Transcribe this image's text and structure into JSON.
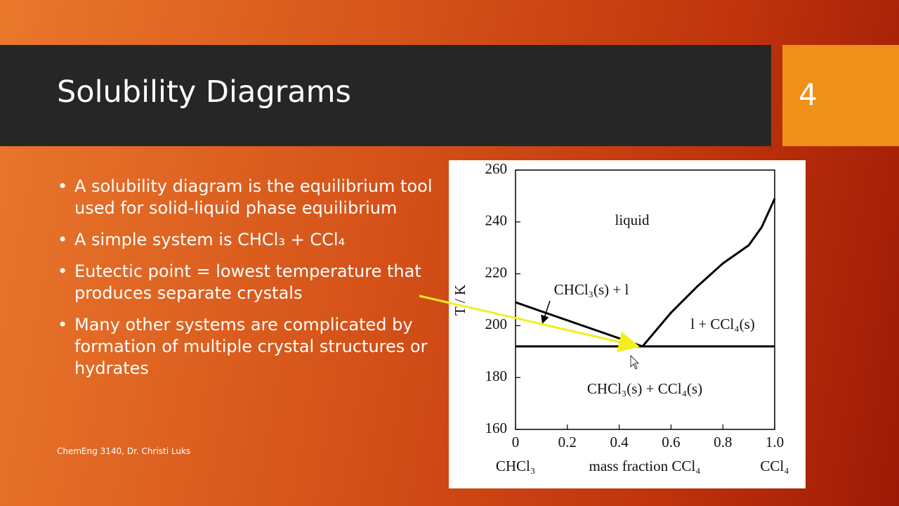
{
  "slide": {
    "title": "Solubility Diagrams",
    "number": "4",
    "bullets": [
      "A solubility diagram is the equilibrium tool used for solid-liquid phase equilibrium",
      "A simple system is CHCl₃ + CCl₄",
      "Eutectic point = lowest temperature that produces separate crystals",
      "Many other systems are complicated by formation of multiple crystal structures or hydrates"
    ],
    "footer": "ChemEng 3140, Dr. Christi Luks"
  },
  "chart_data": {
    "type": "line",
    "y_label": "T / K",
    "x_label": "mass fraction CCl₄",
    "x_end_labels": [
      "CHCl₃",
      "CCl₄"
    ],
    "annotations": [
      "liquid",
      "CHCl₃(s) + l",
      "l + CCl₄(s)",
      "CHCl₃(s) + CCl₄(s)"
    ],
    "xlim": [
      0,
      1
    ],
    "ylim": [
      160,
      260
    ],
    "xticks": [
      0,
      0.2,
      0.4,
      0.6,
      0.8,
      {
        "value": 1,
        "label": "1.0"
      }
    ],
    "yticks": [
      160,
      180,
      200,
      220,
      240,
      260
    ],
    "series": [
      {
        "color": "#000000",
        "x": [
          0,
          0.49
        ],
        "values": [
          209,
          192
        ]
      },
      {
        "color": "#000000",
        "x": [
          0.49,
          0.6,
          0.7,
          0.8,
          0.9,
          0.95,
          1.0
        ],
        "values": [
          192,
          205,
          215,
          224,
          231,
          238,
          249
        ]
      },
      {
        "color": "#000000",
        "x": [
          0,
          1
        ],
        "values": [
          192,
          192
        ]
      }
    ]
  }
}
